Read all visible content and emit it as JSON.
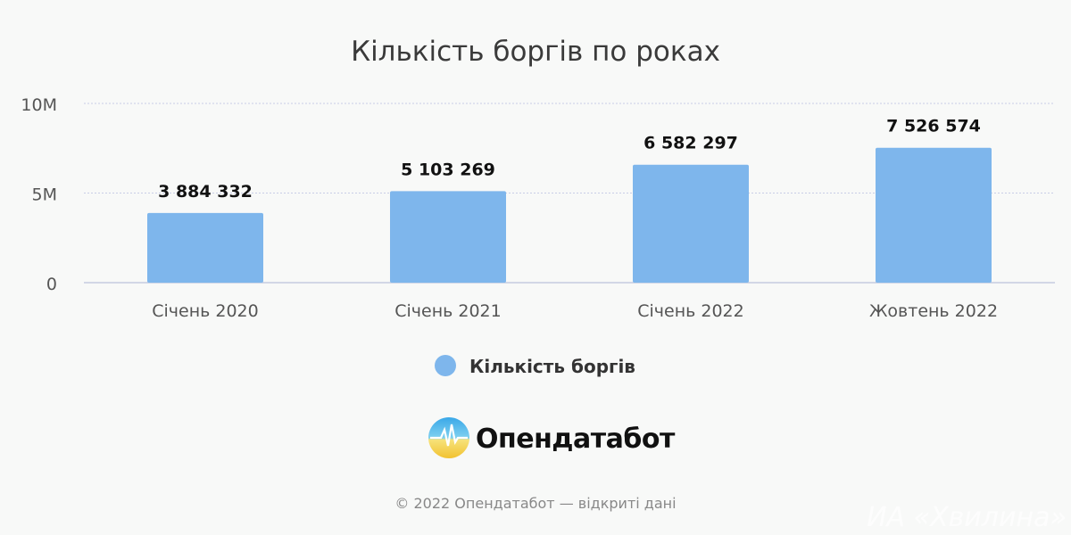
{
  "chart_data": {
    "type": "bar",
    "title": "Кількість боргів по роках",
    "categories": [
      "Січень 2020",
      "Січень 2021",
      "Січень 2022",
      "Жовтень 2022"
    ],
    "series": [
      {
        "name": "Кількість боргів",
        "values": [
          3884332,
          5103269,
          6582297,
          7526574
        ],
        "color": "#7eb6ec"
      }
    ],
    "data_labels": [
      "3 884 332",
      "5 103 269",
      "6 582 297",
      "7 526 574"
    ],
    "ylim": [
      0,
      10000000
    ],
    "yticks": [
      {
        "value": 0,
        "label": "0"
      },
      {
        "value": 5000000,
        "label": "5M"
      },
      {
        "value": 10000000,
        "label": "10M"
      }
    ],
    "grid": true,
    "legend_position": "bottom-center"
  },
  "brand": {
    "name": "Опендатабот"
  },
  "footer": {
    "text": "© 2022 Опендатабот — відкриті дані"
  },
  "watermark": {
    "text": "ИА «Хвилина»"
  }
}
